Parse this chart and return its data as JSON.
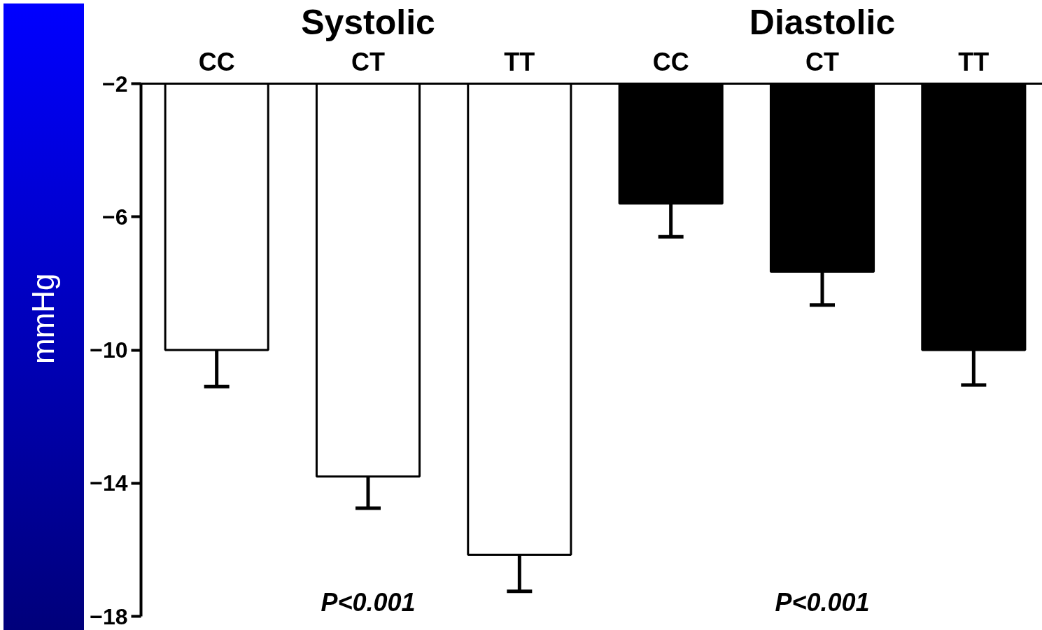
{
  "chart_data": {
    "type": "bar",
    "ylabel": "mmHg",
    "categories": [
      "CC",
      "CT",
      "TT",
      "CC",
      "CT",
      "TT"
    ],
    "values": [
      -8,
      -11.8,
      -14.15,
      -3.6,
      -5.65,
      -8
    ],
    "colors": [
      "#ffffff",
      "#ffffff",
      "#ffffff",
      "#000000",
      "#000000",
      "#000000"
    ],
    "errors": [
      [
        -11.1,
        -10
      ],
      [
        -14.75,
        -13.8
      ],
      [
        -17.25,
        -16.15
      ],
      [
        -6.6,
        -5.6
      ],
      [
        -8.65,
        -7.65
      ],
      [
        -11.05,
        -10
      ]
    ],
    "base": [
      -2,
      -2,
      -2,
      -2,
      -2,
      -2
    ],
    "ylim": [
      -18,
      -2
    ],
    "yticks": [
      -18,
      -14,
      -10,
      -6,
      -2
    ],
    "annotations": [
      "Systolic",
      "Diastolic",
      "P<0.001",
      "P<0.001"
    ],
    "grid": false
  }
}
